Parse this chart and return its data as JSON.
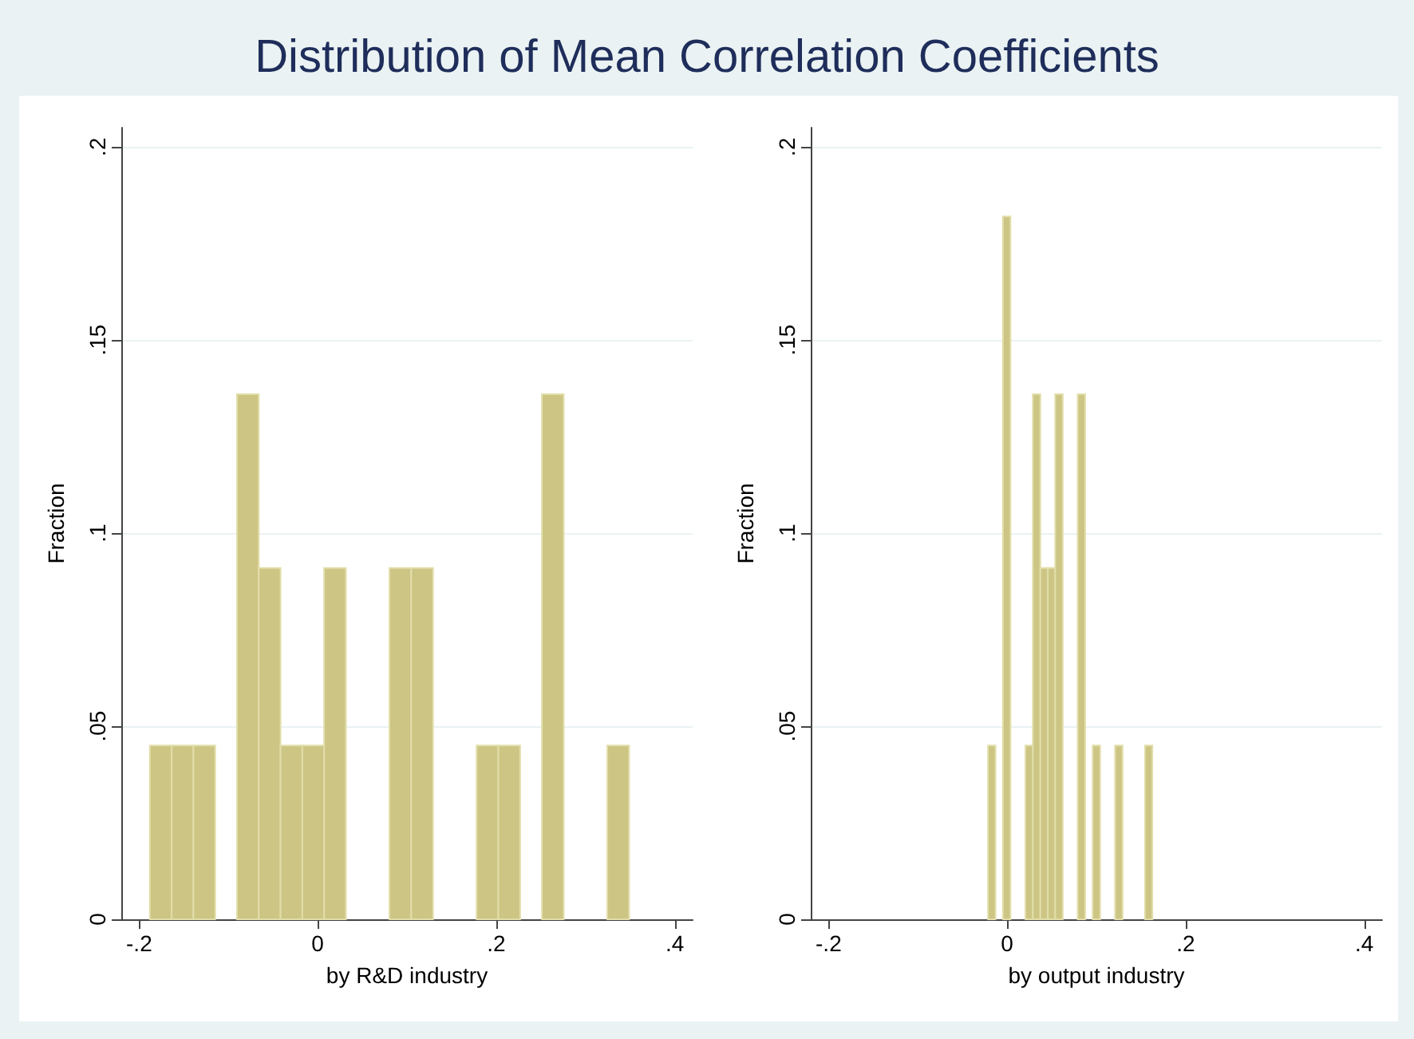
{
  "chart_data": [
    {
      "type": "histogram",
      "title": "Distribution of Mean Correlation Coefficients",
      "xlabel": "by R&D industry",
      "ylabel": "Fraction",
      "color": "#cdc584",
      "bins": [
        -0.188,
        -0.1636,
        -0.1392,
        -0.1148,
        -0.0904,
        -0.066,
        -0.0416,
        -0.0172,
        0.0072,
        0.0316,
        0.056,
        0.0804,
        0.1048,
        0.1292,
        0.1536,
        0.178,
        0.2024,
        0.2268,
        0.2512,
        0.2756,
        0.3,
        0.3244,
        0.3488
      ],
      "values": [
        0.045,
        0.045,
        0.045,
        0,
        0.136,
        0.091,
        0.045,
        0.045,
        0.091,
        0,
        0,
        0.091,
        0.091,
        0,
        0,
        0.045,
        0.045,
        0,
        0.136,
        0,
        0,
        0.045
      ],
      "xlim": [
        -0.22,
        0.42
      ],
      "xticks": [
        {
          "value": -0.2,
          "label": "-.2"
        },
        0,
        {
          "value": 0.2,
          "label": ".2"
        },
        {
          "value": 0.4,
          "label": ".4"
        }
      ],
      "ylim": [
        0,
        0.205
      ],
      "yticks": [
        0,
        {
          "value": 0.05,
          "label": ".05"
        },
        {
          "value": 0.1,
          "label": ".1"
        },
        {
          "value": 0.15,
          "label": ".15"
        },
        {
          "value": 0.2,
          "label": ".2"
        }
      ],
      "grid": "y"
    },
    {
      "type": "histogram",
      "xlabel": "by output industry",
      "ylabel": "Fraction",
      "color": "#cdc584",
      "bins": [
        -0.0214,
        -0.013,
        -0.0047,
        0.0037,
        0.0121,
        0.0205,
        0.0288,
        0.0372,
        0.0456,
        0.0539,
        0.0623,
        0.0707,
        0.079,
        0.0874,
        0.0958,
        0.1042,
        0.1125,
        0.1209,
        0.1293,
        0.1376,
        0.146,
        0.1544,
        0.1627
      ],
      "values": [
        0.045,
        0,
        0.182,
        0,
        0,
        0.045,
        0.136,
        0.091,
        0.091,
        0.136,
        0,
        0,
        0.136,
        0,
        0.045,
        0,
        0,
        0.045,
        0,
        0,
        0,
        0.045
      ],
      "xlim": [
        -0.22,
        0.42
      ],
      "xticks": [
        {
          "value": -0.2,
          "label": "-.2"
        },
        0,
        {
          "value": 0.2,
          "label": ".2"
        },
        {
          "value": 0.4,
          "label": ".4"
        }
      ],
      "ylim": [
        0,
        0.205
      ],
      "yticks": [
        0,
        {
          "value": 0.05,
          "label": ".05"
        },
        {
          "value": 0.1,
          "label": ".1"
        },
        {
          "value": 0.15,
          "label": ".15"
        },
        {
          "value": 0.2,
          "label": ".2"
        }
      ],
      "grid": "y"
    }
  ]
}
